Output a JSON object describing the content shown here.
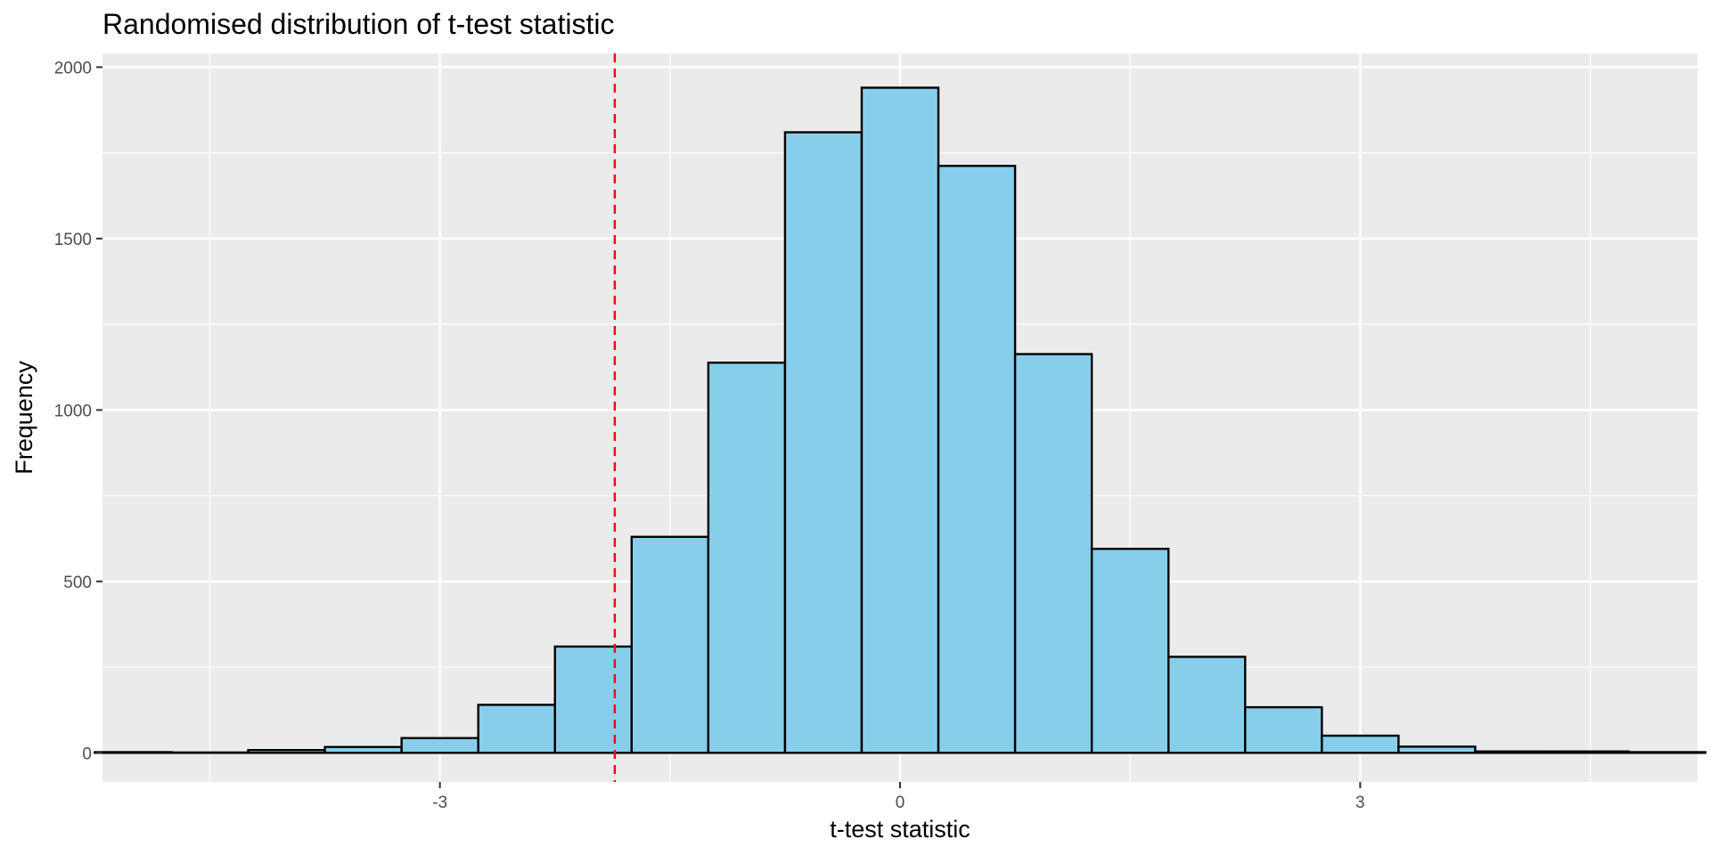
{
  "chart_data": {
    "type": "histogram",
    "title": "Randomised distribution of t-test statistic",
    "xlabel": "t-test statistic",
    "ylabel": "Frequency",
    "xlim": [
      -5.2,
      5.2
    ],
    "ylim": [
      -85,
      2040
    ],
    "x_ticks": [
      -3,
      0,
      3
    ],
    "x_tick_labels": [
      "-3",
      "0",
      "3"
    ],
    "y_ticks": [
      0,
      500,
      1000,
      1500,
      2000
    ],
    "y_tick_labels": [
      "0",
      "500",
      "1000",
      "1500",
      "2000"
    ],
    "bin_width": 0.5,
    "bins": [
      {
        "x0": -5.25,
        "x1": -4.75,
        "count": 2
      },
      {
        "x0": -4.75,
        "x1": -4.25,
        "count": 1
      },
      {
        "x0": -4.25,
        "x1": -3.75,
        "count": 8
      },
      {
        "x0": -3.75,
        "x1": -3.25,
        "count": 17
      },
      {
        "x0": -3.25,
        "x1": -2.75,
        "count": 43
      },
      {
        "x0": -2.75,
        "x1": -2.25,
        "count": 140
      },
      {
        "x0": -2.25,
        "x1": -1.75,
        "count": 310
      },
      {
        "x0": -1.75,
        "x1": -1.25,
        "count": 630
      },
      {
        "x0": -1.25,
        "x1": -0.75,
        "count": 1138
      },
      {
        "x0": -0.75,
        "x1": -0.25,
        "count": 1810
      },
      {
        "x0": -0.25,
        "x1": 0.25,
        "count": 1940
      },
      {
        "x0": 0.25,
        "x1": 0.75,
        "count": 1712
      },
      {
        "x0": 0.75,
        "x1": 1.25,
        "count": 1163
      },
      {
        "x0": 1.25,
        "x1": 1.75,
        "count": 595
      },
      {
        "x0": 1.75,
        "x1": 2.25,
        "count": 280
      },
      {
        "x0": 2.25,
        "x1": 2.75,
        "count": 133
      },
      {
        "x0": 2.75,
        "x1": 3.25,
        "count": 50
      },
      {
        "x0": 3.25,
        "x1": 3.75,
        "count": 18
      },
      {
        "x0": 3.75,
        "x1": 4.25,
        "count": 4
      },
      {
        "x0": 4.25,
        "x1": 4.75,
        "count": 4
      },
      {
        "x0": 4.75,
        "x1": 5.25,
        "count": 2
      }
    ],
    "reference_line": {
      "x": -1.86,
      "style": "dashed",
      "color": "#ff0000"
    },
    "fill_color": "#87ceeb",
    "outline_color": "#000000",
    "panel_background": "#ebebeb",
    "grid_color": "#ffffff",
    "grid": true
  }
}
